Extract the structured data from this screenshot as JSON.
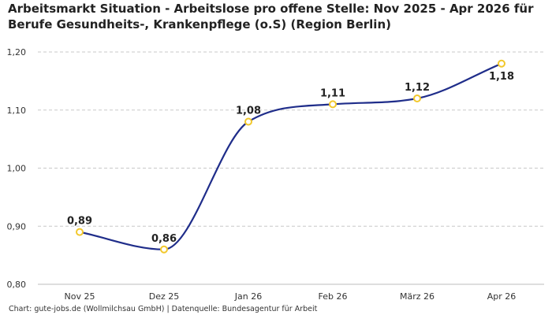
{
  "title_line1": "Arbeitsmarkt Situation - Arbeitslose pro offene Stelle: Nov 2025 - Apr 2026 für",
  "title_line2": "Berufe Gesundheits-, Krankenpflege (o.S) (Region Berlin)",
  "footer": "Chart: gute-jobs.de (Wollmilchsau GmbH) | Datenquelle: Bundesagentur für Arbeit",
  "chart_data": {
    "type": "line",
    "categories": [
      "Nov 25",
      "Dez 25",
      "Jan 26",
      "Feb 26",
      "März 26",
      "Apr 26"
    ],
    "values": [
      0.89,
      0.86,
      1.08,
      1.11,
      1.12,
      1.18
    ],
    "data_labels": [
      "0,89",
      "0,86",
      "1,08",
      "1,11",
      "1,12",
      "1,18"
    ],
    "y_ticks": [
      0.8,
      0.9,
      1.0,
      1.1,
      1.2
    ],
    "y_tick_labels": [
      "0,80",
      "0,90",
      "1,00",
      "1,10",
      "1,20"
    ],
    "ylim": [
      0.8,
      1.2
    ],
    "grid": true,
    "line_color": "#1f2d8a",
    "marker_color": "#f2c82c"
  }
}
